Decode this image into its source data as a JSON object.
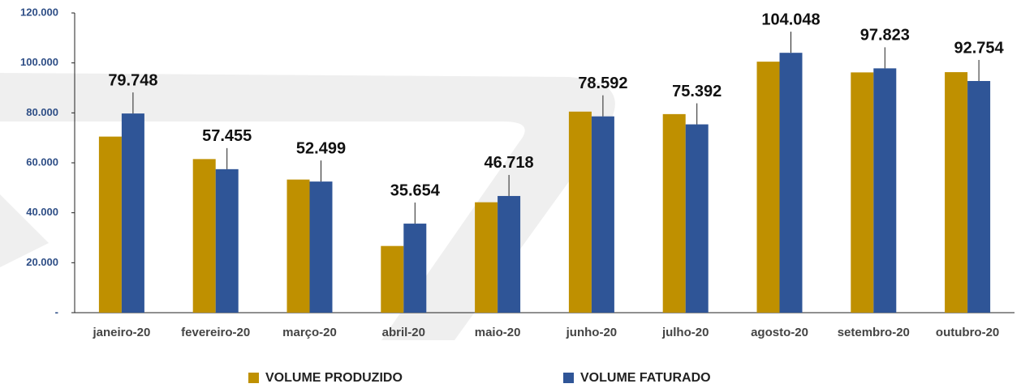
{
  "chart_data": {
    "type": "bar",
    "categories": [
      "janeiro-20",
      "fevereiro-20",
      "março-20",
      "abril-20",
      "maio-20",
      "junho-20",
      "julho-20",
      "agosto-20",
      "setembro-20",
      "outubro-20"
    ],
    "series": [
      {
        "name": "VOLUME PRODUZIDO",
        "color": "#bf9000",
        "values": [
          70500,
          61500,
          53300,
          26700,
          44200,
          80500,
          79500,
          100500,
          96200,
          96300
        ]
      },
      {
        "name": "VOLUME FATURADO",
        "color": "#2f5597",
        "values": [
          79748,
          57455,
          52499,
          35654,
          46718,
          78592,
          75392,
          104048,
          97823,
          92754
        ],
        "value_labels": [
          "79.748",
          "57.455",
          "52.499",
          "35.654",
          "46.718",
          "78.592",
          "75.392",
          "104.048",
          "97.823",
          "92.754"
        ]
      }
    ],
    "ylim": [
      0,
      120000
    ],
    "yticks": [
      {
        "value": 0,
        "label": "-"
      },
      {
        "value": 20000,
        "label": "20.000"
      },
      {
        "value": 40000,
        "label": "40.000"
      },
      {
        "value": 60000,
        "label": "60.000"
      },
      {
        "value": 80000,
        "label": "80.000"
      },
      {
        "value": 100000,
        "label": "100.000"
      },
      {
        "value": 120000,
        "label": "120.000"
      }
    ],
    "legend": "bottom"
  }
}
